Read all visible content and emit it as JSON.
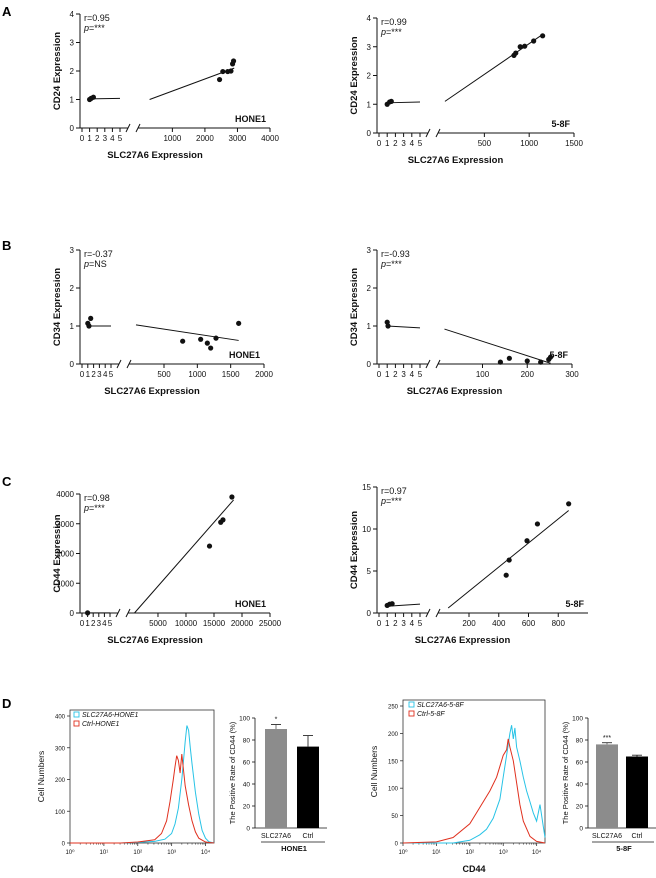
{
  "panels": {
    "A": "A",
    "B": "B",
    "C": "C",
    "D": "D"
  },
  "chart_data": [
    {
      "id": "A1",
      "type": "scatter",
      "panel": "A",
      "ylabel": "CD24 Expression",
      "xlabel": "SLC27A6 Expression",
      "tag": "HONE1",
      "stat_r": "r=0.95",
      "stat_p": "***",
      "y_range": [
        0,
        4
      ],
      "y_ticks": [
        "0",
        "1",
        "2",
        "3",
        "4"
      ],
      "y_ticks_values": [
        0,
        1,
        2,
        3,
        4
      ],
      "x_left_range": [
        0,
        5
      ],
      "x_left_ticks": [
        "0",
        "1",
        "2",
        "3",
        "4",
        "5"
      ],
      "x_left_ticks_values": [
        0,
        1,
        2,
        3,
        4,
        5
      ],
      "x_right_range": [
        5,
        4000
      ],
      "x_right_ticks": [
        "1000",
        "2000",
        "3000",
        "4000"
      ],
      "x_right_ticks_values": [
        1000,
        2000,
        3000,
        4000
      ],
      "low_points": [
        [
          1,
          1.0
        ],
        [
          1.5,
          1.08
        ],
        [
          1.2,
          1.04
        ]
      ],
      "high_points": [
        [
          2450,
          1.7
        ],
        [
          2550,
          1.98
        ],
        [
          2700,
          1.98
        ],
        [
          2800,
          2.0
        ],
        [
          2850,
          2.25
        ],
        [
          2880,
          2.35
        ]
      ],
      "low_fit": [
        [
          1,
          1.02
        ],
        [
          5,
          1.04
        ]
      ],
      "high_fit": [
        [
          300,
          1.0
        ],
        [
          2900,
          2.1
        ]
      ]
    },
    {
      "id": "A2",
      "type": "scatter",
      "panel": "A",
      "ylabel": "CD24 Expression",
      "xlabel": "SLC27A6 Expression",
      "tag": "5-8F",
      "stat_r": "r=0.99",
      "stat_p": "***",
      "y_range": [
        0,
        4
      ],
      "y_ticks": [
        "0",
        "1",
        "2",
        "3",
        "4"
      ],
      "y_ticks_values": [
        0,
        1,
        2,
        3,
        4
      ],
      "x_left_range": [
        0,
        5
      ],
      "x_left_ticks": [
        "0",
        "1",
        "2",
        "3",
        "4",
        "5"
      ],
      "x_left_ticks_values": [
        0,
        1,
        2,
        3,
        4,
        5
      ],
      "x_right_range": [
        5,
        1500
      ],
      "x_right_ticks": [
        "500",
        "1000",
        "1500"
      ],
      "x_right_ticks_values": [
        500,
        1000,
        1500
      ],
      "low_points": [
        [
          1,
          1.0
        ],
        [
          1.3,
          1.08
        ],
        [
          1.5,
          1.1
        ]
      ],
      "high_points": [
        [
          830,
          2.7
        ],
        [
          850,
          2.78
        ],
        [
          900,
          3.0
        ],
        [
          950,
          3.02
        ],
        [
          1050,
          3.2
        ],
        [
          1150,
          3.38
        ]
      ],
      "low_fit": [
        [
          1,
          1.05
        ],
        [
          5,
          1.08
        ]
      ],
      "high_fit": [
        [
          60,
          1.1
        ],
        [
          1160,
          3.45
        ]
      ]
    },
    {
      "id": "B1",
      "type": "scatter",
      "panel": "B",
      "ylabel": "CD34 Expression",
      "xlabel": "SLC27A6 Expression",
      "tag": "HONE1",
      "stat_r": "r=-0.37",
      "stat_p": "NS",
      "y_range": [
        0,
        3
      ],
      "y_ticks": [
        "0",
        "1",
        "2",
        "3"
      ],
      "y_ticks_values": [
        0,
        1,
        2,
        3
      ],
      "x_left_range": [
        0,
        5
      ],
      "x_left_ticks": [
        "0",
        "1",
        "2",
        "3",
        "4",
        "5"
      ],
      "x_left_ticks_values": [
        0,
        1,
        2,
        3,
        4,
        5
      ],
      "x_right_range": [
        5,
        2000
      ],
      "x_right_ticks": [
        "500",
        "1000",
        "1500",
        "2000"
      ],
      "x_right_ticks_values": [
        500,
        1000,
        1500,
        2000
      ],
      "low_points": [
        [
          1,
          1.07
        ],
        [
          1.2,
          1.0
        ],
        [
          1.5,
          1.2
        ]
      ],
      "high_points": [
        [
          780,
          0.6
        ],
        [
          1050,
          0.65
        ],
        [
          1150,
          0.55
        ],
        [
          1200,
          0.42
        ],
        [
          1280,
          0.68
        ],
        [
          1620,
          1.07
        ]
      ],
      "low_fit": [
        [
          1,
          1.0
        ],
        [
          5,
          1.0
        ]
      ],
      "high_fit": [
        [
          80,
          1.03
        ],
        [
          1620,
          0.62
        ]
      ]
    },
    {
      "id": "B2",
      "type": "scatter",
      "panel": "B",
      "ylabel": "CD34 Expression",
      "xlabel": "SLC27A6 Expression",
      "tag": "5-8F",
      "stat_r": "r=-0.93",
      "stat_p": "***",
      "y_range": [
        0,
        3
      ],
      "y_ticks": [
        "0",
        "1",
        "2",
        "3"
      ],
      "y_ticks_values": [
        0,
        1,
        2,
        3
      ],
      "x_left_range": [
        0,
        5
      ],
      "x_left_ticks": [
        "0",
        "1",
        "2",
        "3",
        "4",
        "5"
      ],
      "x_left_ticks_values": [
        0,
        1,
        2,
        3,
        4,
        5
      ],
      "x_right_range": [
        5,
        300
      ],
      "x_right_ticks": [
        "100",
        "200",
        "300"
      ],
      "x_right_ticks_values": [
        100,
        200,
        300
      ],
      "low_points": [
        [
          1,
          1.1
        ],
        [
          1.1,
          1.0
        ]
      ],
      "high_points": [
        [
          140,
          0.05
        ],
        [
          160,
          0.15
        ],
        [
          200,
          0.08
        ],
        [
          230,
          0.05
        ],
        [
          248,
          0.12
        ],
        [
          252,
          0.18
        ]
      ],
      "low_fit": [
        [
          1,
          1.0
        ],
        [
          5,
          0.95
        ]
      ],
      "high_fit": [
        [
          15,
          0.92
        ],
        [
          252,
          0.02
        ]
      ]
    },
    {
      "id": "C1",
      "type": "scatter",
      "panel": "C",
      "ylabel": "CD44 Expression",
      "xlabel": "SLC27A6 Expression",
      "tag": "HONE1",
      "stat_r": "r=0.98",
      "stat_p": "***",
      "y_range": [
        0,
        4000
      ],
      "y_ticks": [
        "0",
        "1000",
        "2000",
        "3000",
        "4000"
      ],
      "y_ticks_values": [
        0,
        1000,
        2000,
        3000,
        4000
      ],
      "x_left_range": [
        0,
        5
      ],
      "x_left_ticks": [
        "0",
        "1",
        "2",
        "3",
        "4",
        "5"
      ],
      "x_left_ticks_values": [
        0,
        1,
        2,
        3,
        4,
        5
      ],
      "x_right_range": [
        5,
        25000
      ],
      "x_right_ticks": [
        "5000",
        "10000",
        "15000",
        "20000",
        "25000"
      ],
      "x_right_ticks_values": [
        5000,
        10000,
        15000,
        20000,
        25000
      ],
      "low_points": [
        [
          1,
          5
        ]
      ],
      "high_points": [
        [
          14200,
          2250
        ],
        [
          16200,
          3050
        ],
        [
          16600,
          3130
        ],
        [
          18200,
          3900
        ]
      ],
      "low_fit": [
        [
          1,
          3
        ],
        [
          5,
          3
        ]
      ],
      "high_fit": [
        [
          800,
          0
        ],
        [
          18500,
          3800
        ]
      ]
    },
    {
      "id": "C2",
      "type": "scatter",
      "panel": "C",
      "ylabel": "CD44 Expression",
      "xlabel": "SLC27A6 Expression",
      "tag": "5-8F",
      "stat_r": "r=0.97",
      "stat_p": "***",
      "y_range": [
        0,
        15
      ],
      "y_ticks": [
        "0",
        "5",
        "10",
        "15"
      ],
      "y_ticks_values": [
        0,
        5,
        10,
        15
      ],
      "x_left_range": [
        0,
        5
      ],
      "x_left_ticks": [
        "0",
        "1",
        "2",
        "3",
        "4",
        "5"
      ],
      "x_left_ticks_values": [
        0,
        1,
        2,
        3,
        4,
        5
      ],
      "x_right_range": [
        5,
        1000
      ],
      "x_right_ticks": [
        "200",
        "400",
        "600",
        "800"
      ],
      "x_right_ticks_values": [
        200,
        400,
        600,
        800
      ],
      "low_points": [
        [
          1,
          0.9
        ],
        [
          1.3,
          1.05
        ],
        [
          1.6,
          1.1
        ]
      ],
      "high_points": [
        [
          450,
          4.5
        ],
        [
          470,
          6.3
        ],
        [
          590,
          8.6
        ],
        [
          660,
          10.6
        ],
        [
          870,
          13.0
        ]
      ],
      "low_fit": [
        [
          1,
          0.8
        ],
        [
          5,
          1.05
        ]
      ],
      "high_fit": [
        [
          60,
          0.6
        ],
        [
          870,
          12.2
        ]
      ]
    },
    {
      "id": "D1",
      "type": "flow-histogram",
      "panel": "D",
      "xlabel": "CD44",
      "ylabel": "Cell Numbers",
      "y_range": [
        0,
        400
      ],
      "y_ticks": [
        "0",
        "100",
        "200",
        "300",
        "400"
      ],
      "y_ticks_values": [
        0,
        100,
        200,
        300,
        400
      ],
      "x_log_ticks": [
        "10⁰",
        "10¹",
        "10²",
        "10³",
        "10⁴"
      ],
      "x_log_range": [
        0,
        4.25
      ],
      "legend": [
        {
          "label": "SLC27A6-HONE1",
          "color": "#27c3e6"
        },
        {
          "label": "Ctrl-HONE1",
          "color": "#e0301e"
        }
      ],
      "series": [
        {
          "name": "SLC27A6-HONE1",
          "color": "#27c3e6",
          "x": [
            0.0,
            1.5,
            2.0,
            2.5,
            2.8,
            3.0,
            3.1,
            3.2,
            3.3,
            3.35,
            3.4,
            3.45,
            3.5,
            3.55,
            3.6,
            3.7,
            3.8,
            3.9,
            4.0,
            4.1,
            4.25
          ],
          "y": [
            0,
            0,
            2,
            5,
            12,
            30,
            60,
            110,
            200,
            260,
            320,
            370,
            355,
            300,
            250,
            160,
            90,
            40,
            15,
            4,
            0
          ]
        },
        {
          "name": "Ctrl-HONE1",
          "color": "#e0301e",
          "x": [
            0.0,
            1.5,
            2.0,
            2.5,
            2.7,
            2.85,
            2.95,
            3.05,
            3.1,
            3.15,
            3.2,
            3.25,
            3.3,
            3.35,
            3.4,
            3.5,
            3.6,
            3.7,
            3.8,
            4.0,
            4.25
          ],
          "y": [
            0,
            0,
            3,
            10,
            30,
            70,
            130,
            200,
            240,
            275,
            260,
            220,
            280,
            230,
            180,
            120,
            70,
            35,
            15,
            3,
            0
          ]
        }
      ]
    },
    {
      "id": "D2",
      "type": "bar",
      "panel": "D",
      "ylabel": "The Positive Rate of CD44 (%)",
      "group_label": "HONE1",
      "categories": [
        "SLC27A6",
        "Ctrl"
      ],
      "values": [
        90,
        74
      ],
      "errors": [
        4,
        10
      ],
      "bar_colors": [
        "#8c8c8c",
        "#000000"
      ],
      "significance": [
        "*",
        ""
      ],
      "y_range": [
        0,
        100
      ],
      "y_ticks": [
        "0",
        "20",
        "40",
        "60",
        "80",
        "100"
      ],
      "y_ticks_values": [
        0,
        20,
        40,
        60,
        80,
        100
      ]
    },
    {
      "id": "D3",
      "type": "flow-histogram",
      "panel": "D",
      "xlabel": "CD44",
      "ylabel": "Cell Numbers",
      "y_range": [
        0,
        250
      ],
      "y_ticks": [
        "0",
        "50",
        "100",
        "150",
        "200",
        "250"
      ],
      "y_ticks_values": [
        0,
        50,
        100,
        150,
        200,
        250
      ],
      "x_log_ticks": [
        "10⁰",
        "10¹",
        "10²",
        "10³",
        "10⁴"
      ],
      "x_log_range": [
        0,
        4.25
      ],
      "legend": [
        {
          "label": "SLC27A6-5-8F",
          "color": "#27c3e6"
        },
        {
          "label": "Ctrl-5-8F",
          "color": "#e0301e"
        }
      ],
      "series": [
        {
          "name": "SLC27A6-5-8F",
          "color": "#27c3e6",
          "x": [
            0.0,
            1.5,
            2.0,
            2.3,
            2.5,
            2.7,
            2.9,
            3.0,
            3.1,
            3.2,
            3.25,
            3.3,
            3.35,
            3.4,
            3.5,
            3.6,
            3.7,
            3.8,
            3.9,
            4.0,
            4.1,
            4.2,
            4.25
          ],
          "y": [
            0,
            0,
            5,
            15,
            25,
            45,
            80,
            120,
            160,
            200,
            215,
            190,
            210,
            175,
            150,
            120,
            95,
            75,
            55,
            40,
            70,
            30,
            10
          ]
        },
        {
          "name": "Ctrl-5-8F",
          "color": "#e0301e",
          "x": [
            0.0,
            1.0,
            1.5,
            2.0,
            2.2,
            2.4,
            2.6,
            2.8,
            2.9,
            3.0,
            3.1,
            3.15,
            3.2,
            3.3,
            3.4,
            3.5,
            3.6,
            3.8,
            4.0,
            4.25
          ],
          "y": [
            0,
            2,
            10,
            35,
            55,
            75,
            95,
            120,
            140,
            160,
            170,
            190,
            175,
            150,
            110,
            70,
            40,
            12,
            3,
            0
          ]
        }
      ]
    },
    {
      "id": "D4",
      "type": "bar",
      "panel": "D",
      "ylabel": "The Positive Rate of CD44 (%)",
      "group_label": "5-8F",
      "categories": [
        "SLC27A6",
        "Ctrl"
      ],
      "values": [
        76,
        65
      ],
      "errors": [
        1.5,
        1.2
      ],
      "bar_colors": [
        "#8c8c8c",
        "#000000"
      ],
      "significance": [
        "***",
        ""
      ],
      "y_range": [
        0,
        100
      ],
      "y_ticks": [
        "0",
        "20",
        "40",
        "60",
        "80",
        "100"
      ],
      "y_ticks_values": [
        0,
        20,
        40,
        60,
        80,
        100
      ]
    }
  ]
}
